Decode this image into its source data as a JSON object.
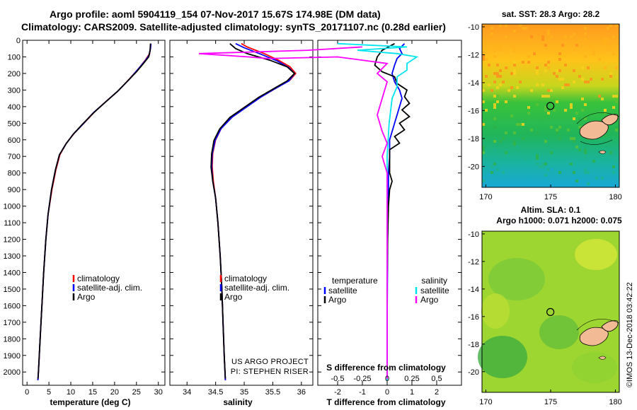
{
  "header": {
    "line1": "Argo profile: aoml 5904119_154 07-Nov-2017 15.67S 174.98E (DM data)",
    "line2": "Climatology: CARS2009. Satellite-adjusted climatology: synTS_20171107.nc (0.28d earlier)"
  },
  "colors": {
    "climatology": "#ff0000",
    "satellite": "#0000ff",
    "argo": "#000000",
    "t_sat": "#0000ff",
    "s_sat": "#00e5ee",
    "s_argo": "#ff00ff"
  },
  "chart_data": [
    {
      "type": "line",
      "title": "",
      "xlabel": "temperature (deg C)",
      "ylabel": "",
      "xlim": [
        -1,
        31.5
      ],
      "ylim": [
        2080,
        0
      ],
      "xticks": [
        0,
        5,
        10,
        15,
        20,
        25,
        30
      ],
      "yticks": [
        0,
        100,
        200,
        300,
        400,
        500,
        600,
        700,
        800,
        900,
        1000,
        1100,
        1200,
        1300,
        1400,
        1500,
        1600,
        1700,
        1800,
        1900,
        2000
      ],
      "legend": [
        "climatology",
        "satellite-adj. clim.",
        "Argo"
      ],
      "series": [
        {
          "name": "climatology",
          "color": "#ff0000",
          "points": [
            [
              28.3,
              20
            ],
            [
              28.2,
              50
            ],
            [
              28.0,
              80
            ],
            [
              27.0,
              120
            ],
            [
              25.5,
              170
            ],
            [
              23.5,
              230
            ],
            [
              21.0,
              300
            ],
            [
              18.0,
              370
            ],
            [
              15.5,
              430
            ],
            [
              13.0,
              500
            ],
            [
              10.8,
              560
            ],
            [
              9.0,
              620
            ],
            [
              7.5,
              690
            ],
            [
              6.6,
              780
            ],
            [
              5.7,
              900
            ],
            [
              4.8,
              1050
            ],
            [
              4.3,
              1200
            ],
            [
              3.8,
              1400
            ],
            [
              3.4,
              1600
            ],
            [
              3.0,
              1800
            ],
            [
              2.6,
              2000
            ],
            [
              2.5,
              2050
            ]
          ]
        },
        {
          "name": "satellite-adj. clim.",
          "color": "#0000ff",
          "points": [
            [
              28.3,
              20
            ],
            [
              28.2,
              50
            ],
            [
              27.9,
              90
            ],
            [
              26.8,
              130
            ],
            [
              25.2,
              180
            ],
            [
              23.2,
              240
            ],
            [
              20.8,
              305
            ],
            [
              17.8,
              375
            ],
            [
              15.2,
              435
            ],
            [
              12.8,
              505
            ],
            [
              10.6,
              565
            ],
            [
              8.9,
              625
            ],
            [
              7.4,
              690
            ],
            [
              6.5,
              780
            ],
            [
              5.6,
              900
            ],
            [
              4.8,
              1050
            ],
            [
              4.3,
              1200
            ],
            [
              3.8,
              1400
            ],
            [
              3.4,
              1600
            ],
            [
              3.0,
              1800
            ],
            [
              2.6,
              2000
            ],
            [
              2.5,
              2050
            ]
          ]
        },
        {
          "name": "Argo",
          "color": "#000000",
          "points": [
            [
              28.2,
              20
            ],
            [
              28.1,
              60
            ],
            [
              27.8,
              100
            ],
            [
              26.6,
              140
            ],
            [
              25.0,
              190
            ],
            [
              23.0,
              245
            ],
            [
              20.6,
              310
            ],
            [
              17.6,
              380
            ],
            [
              15.1,
              440
            ],
            [
              12.7,
              505
            ],
            [
              10.6,
              565
            ],
            [
              8.9,
              625
            ],
            [
              7.4,
              690
            ],
            [
              6.5,
              780
            ],
            [
              5.6,
              900
            ],
            [
              4.8,
              1050
            ],
            [
              4.3,
              1200
            ],
            [
              3.8,
              1400
            ],
            [
              3.4,
              1600
            ],
            [
              3.0,
              1800
            ],
            [
              2.6,
              2000
            ],
            [
              2.5,
              2040
            ]
          ]
        }
      ]
    },
    {
      "type": "line",
      "title": "",
      "xlabel": "salinity",
      "xlim": [
        33.7,
        36.2
      ],
      "ylim": [
        2080,
        0
      ],
      "xticks": [
        34,
        34.5,
        35,
        35.5,
        36
      ],
      "legend": [
        "climatology",
        "satellite-adj. clim.",
        "Argo"
      ],
      "annotation": [
        "US ARGO PROJECT",
        "PI: STEPHEN RISER"
      ],
      "series": [
        {
          "name": "climatology",
          "color": "#ff0000",
          "points": [
            [
              34.95,
              20
            ],
            [
              35.05,
              40
            ],
            [
              35.35,
              80
            ],
            [
              35.6,
              120
            ],
            [
              35.8,
              160
            ],
            [
              35.9,
              200
            ],
            [
              35.8,
              240
            ],
            [
              35.55,
              290
            ],
            [
              35.3,
              340
            ],
            [
              35.05,
              400
            ],
            [
              34.8,
              460
            ],
            [
              34.6,
              530
            ],
            [
              34.5,
              600
            ],
            [
              34.45,
              680
            ],
            [
              34.44,
              760
            ],
            [
              34.46,
              850
            ],
            [
              34.5,
              950
            ],
            [
              34.54,
              1100
            ],
            [
              34.58,
              1300
            ],
            [
              34.61,
              1500
            ],
            [
              34.63,
              1700
            ],
            [
              34.65,
              1900
            ],
            [
              34.67,
              2050
            ]
          ]
        },
        {
          "name": "satellite-adj. clim.",
          "color": "#0000ff",
          "points": [
            [
              34.85,
              20
            ],
            [
              35.0,
              45
            ],
            [
              35.3,
              85
            ],
            [
              35.58,
              125
            ],
            [
              35.78,
              165
            ],
            [
              35.88,
              200
            ],
            [
              35.78,
              245
            ],
            [
              35.52,
              295
            ],
            [
              35.28,
              345
            ],
            [
              35.03,
              405
            ],
            [
              34.78,
              465
            ],
            [
              34.59,
              535
            ],
            [
              34.49,
              605
            ],
            [
              34.44,
              685
            ],
            [
              34.43,
              765
            ],
            [
              34.45,
              850
            ],
            [
              34.5,
              950
            ],
            [
              34.54,
              1100
            ],
            [
              34.58,
              1300
            ],
            [
              34.61,
              1500
            ],
            [
              34.63,
              1700
            ],
            [
              34.65,
              1900
            ],
            [
              34.67,
              2050
            ]
          ]
        },
        {
          "name": "Argo",
          "color": "#000000",
          "points": [
            [
              34.75,
              20
            ],
            [
              34.85,
              50
            ],
            [
              35.05,
              80
            ],
            [
              35.45,
              120
            ],
            [
              35.75,
              160
            ],
            [
              35.88,
              200
            ],
            [
              35.75,
              245
            ],
            [
              35.5,
              295
            ],
            [
              35.25,
              345
            ],
            [
              35.0,
              405
            ],
            [
              34.75,
              465
            ],
            [
              34.57,
              535
            ],
            [
              34.47,
              605
            ],
            [
              34.43,
              685
            ],
            [
              34.42,
              765
            ],
            [
              34.45,
              850
            ],
            [
              34.5,
              950
            ],
            [
              34.54,
              1100
            ],
            [
              34.58,
              1300
            ],
            [
              34.61,
              1500
            ],
            [
              34.63,
              1700
            ],
            [
              34.65,
              1900
            ],
            [
              34.67,
              2040
            ]
          ]
        }
      ]
    },
    {
      "type": "line",
      "title": "S difference from climatology",
      "xlabel": "T difference from climatology",
      "xlim": [
        -2.8,
        3.0
      ],
      "ylim": [
        2080,
        0
      ],
      "xticks": [
        -2,
        -1,
        0,
        1,
        2
      ],
      "top_ticks": [
        -0.5,
        -0.25,
        0,
        0.25,
        0.5
      ],
      "top_tick_labels": [
        "-0.5",
        "-0.25",
        "0",
        "0.25",
        "0.5"
      ],
      "legend_left_title": "temperature",
      "legend_right_title": "salinity",
      "legend": [
        "satellite",
        "Argo",
        "satellite",
        "Argo"
      ],
      "series": [
        {
          "name": "T satellite",
          "color": "#0000ff",
          "points": [
            [
              0.7,
              20
            ],
            [
              0.5,
              50
            ],
            [
              0.6,
              80
            ],
            [
              0.4,
              110
            ],
            [
              0.3,
              150
            ],
            [
              0.2,
              200
            ],
            [
              0.3,
              250
            ],
            [
              0.5,
              300
            ],
            [
              0.6,
              350
            ],
            [
              0.5,
              400
            ],
            [
              0.4,
              450
            ],
            [
              0.3,
              500
            ],
            [
              0.2,
              550
            ],
            [
              0.1,
              600
            ],
            [
              0.1,
              700
            ],
            [
              0.05,
              800
            ],
            [
              0.05,
              900
            ],
            [
              0.02,
              1100
            ],
            [
              0.01,
              1400
            ],
            [
              0.0,
              1700
            ],
            [
              0.0,
              2050
            ]
          ]
        },
        {
          "name": "T Argo",
          "color": "#000000",
          "points": [
            [
              0.3,
              20
            ],
            [
              -0.2,
              60
            ],
            [
              -0.4,
              100
            ],
            [
              -0.5,
              150
            ],
            [
              -0.2,
              190
            ],
            [
              0.3,
              220
            ],
            [
              0.4,
              260
            ],
            [
              0.8,
              300
            ],
            [
              0.7,
              340
            ],
            [
              0.9,
              380
            ],
            [
              0.6,
              420
            ],
            [
              0.9,
              460
            ],
            [
              0.5,
              500
            ],
            [
              0.7,
              540
            ],
            [
              0.3,
              580
            ],
            [
              0.5,
              620
            ],
            [
              0.1,
              660
            ],
            [
              0.1,
              720
            ],
            [
              0.1,
              800
            ],
            [
              0.2,
              850
            ],
            [
              0.1,
              900
            ],
            [
              0.05,
              1000
            ],
            [
              0.02,
              1200
            ],
            [
              0.0,
              1500
            ],
            [
              0.0,
              2040
            ]
          ]
        },
        {
          "name": "S satellite",
          "color": "#00e5ee",
          "points": [
            [
              -0.5,
              20
            ],
            [
              0.2,
              40
            ],
            [
              -0.3,
              60
            ],
            [
              0.1,
              80
            ],
            [
              0.3,
              100
            ],
            [
              0.2,
              140
            ],
            [
              0.2,
              180
            ],
            [
              0.1,
              220
            ],
            [
              0.1,
              280
            ],
            [
              0.05,
              350
            ],
            [
              0.02,
              500
            ],
            [
              0.0,
              700
            ],
            [
              0.0,
              1000
            ],
            [
              0.0,
              2050
            ]
          ]
        },
        {
          "name": "S Argo",
          "color": "#ff00ff",
          "points": [
            [
              -0.25,
              40
            ],
            [
              -0.8,
              60
            ],
            [
              -1.9,
              80
            ],
            [
              -1.4,
              100
            ],
            [
              -1.2,
              110
            ],
            [
              -0.5,
              100
            ],
            [
              0.0,
              140
            ],
            [
              -0.1,
              200
            ],
            [
              0.0,
              250
            ],
            [
              -0.05,
              350
            ],
            [
              -0.1,
              450
            ],
            [
              -0.05,
              550
            ],
            [
              0.0,
              620
            ],
            [
              -0.05,
              700
            ],
            [
              0.0,
              800
            ],
            [
              0.0,
              1000
            ],
            [
              0.0,
              2040
            ]
          ]
        }
      ]
    },
    {
      "type": "heatmap",
      "title": "sat. SST: 28.3 Argo: 28.2",
      "xlim": [
        169.7,
        180.3
      ],
      "ylim": [
        -21.5,
        -9.8
      ],
      "xticks": [
        170,
        175,
        180
      ],
      "yticks": [
        -10,
        -12,
        -14,
        -16,
        -18,
        -20
      ],
      "marker": {
        "lon": 174.98,
        "lat": -15.67
      }
    },
    {
      "type": "heatmap",
      "title": "Altim. SLA: 0.1",
      "subtitle": "Argo h1000: 0.071 h2000: 0.075",
      "xlim": [
        169.7,
        180.3
      ],
      "ylim": [
        -21.5,
        -9.8
      ],
      "xticks": [
        170,
        175,
        180
      ],
      "yticks": [
        -10,
        -12,
        -14,
        -16,
        -18,
        -20
      ],
      "marker": {
        "lon": 174.98,
        "lat": -15.67
      }
    }
  ],
  "credit": "©IMOS 13-Dec-2018 03:42:22"
}
